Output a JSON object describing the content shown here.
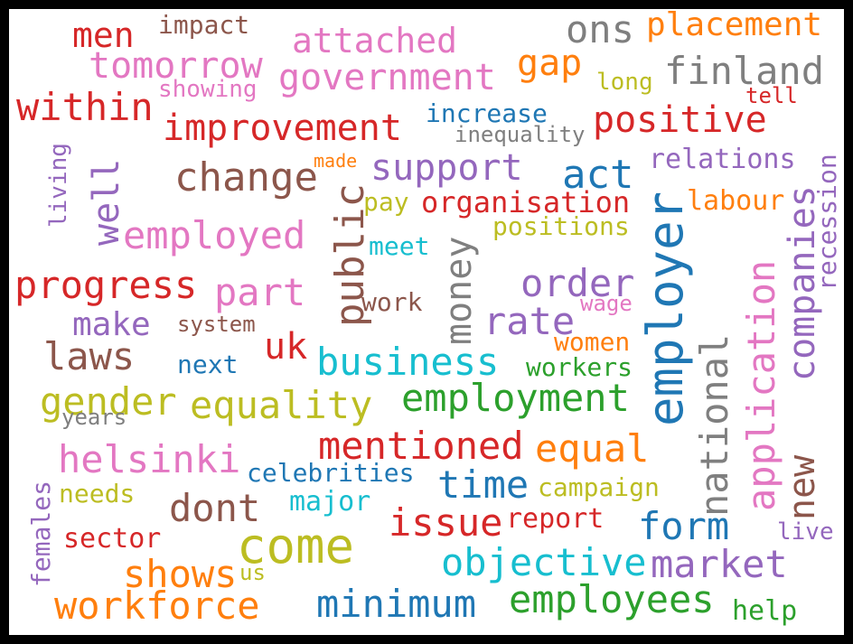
{
  "palette": {
    "red": "#d62728",
    "brown": "#8c564b",
    "pink": "#e377c2",
    "gray": "#7f7f7f",
    "orange": "#ff7f0e",
    "olive": "#bcbd22",
    "blue": "#1f77b4",
    "cyan": "#17becf",
    "purple": "#9467bd",
    "green": "#2ca02c"
  },
  "words": [
    "men",
    "impact",
    "attached",
    "ons",
    "placement",
    "tomorrow",
    "gap",
    "finland",
    "government",
    "long",
    "showing",
    "tell",
    "within",
    "increase",
    "positive",
    "improvement",
    "inequality",
    "made",
    "support",
    "change",
    "act",
    "relations",
    "living",
    "well",
    "pay",
    "organisation",
    "labour",
    "public",
    "employer",
    "companies",
    "recession",
    "employed",
    "positions",
    "meet",
    "money",
    "progress",
    "part",
    "order",
    "application",
    "wage",
    "work",
    "make",
    "system",
    "rate",
    "national",
    "women",
    "laws",
    "uk",
    "business",
    "next",
    "workers",
    "gender",
    "equality",
    "employment",
    "years",
    "helsinki",
    "mentioned",
    "equal",
    "new",
    "celebrities",
    "time",
    "females",
    "needs",
    "campaign",
    "dont",
    "major",
    "come",
    "issue",
    "report",
    "form",
    "sector",
    "live",
    "shows",
    "us",
    "objective",
    "market",
    "workforce",
    "minimum",
    "employees",
    "help"
  ]
}
